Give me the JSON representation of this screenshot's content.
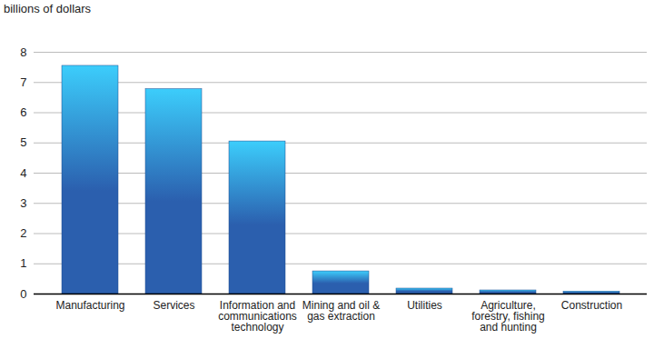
{
  "chart_data": {
    "type": "bar",
    "ylabel": "billions of dollars",
    "categories": [
      "Manufacturing",
      "Services",
      "Information and communications technology",
      "Mining and oil & gas extraction",
      "Utilities",
      "Agriculture, forestry, fishing and hunting",
      "Construction"
    ],
    "values": [
      7.55,
      6.78,
      5.05,
      0.75,
      0.18,
      0.12,
      0.08
    ],
    "color": "#2b5fae",
    "ylim": [
      0,
      8
    ],
    "yticks": [
      0,
      1,
      2,
      3,
      4,
      5,
      6,
      7,
      8
    ],
    "grid": true
  }
}
